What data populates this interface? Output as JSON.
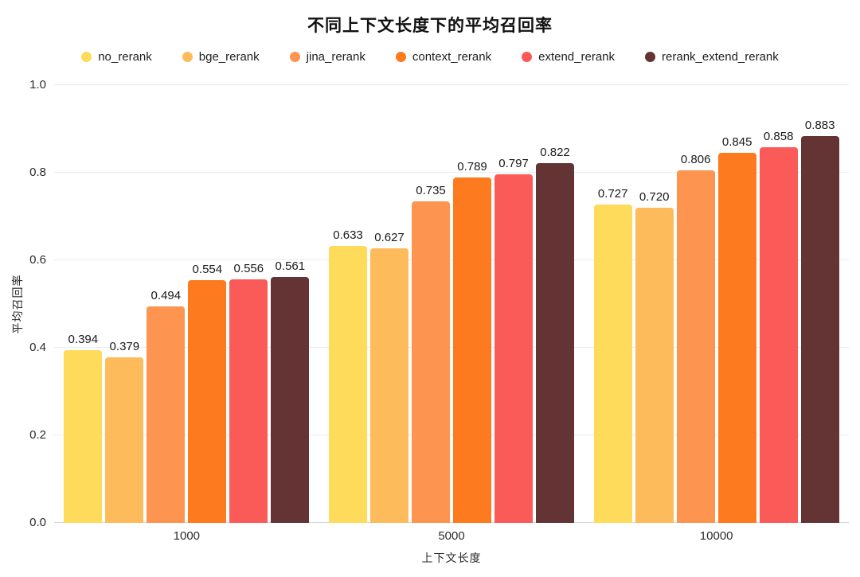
{
  "chart_data": {
    "type": "bar",
    "title": "不同上下文长度下的平均召回率",
    "xlabel": "上下文长度",
    "ylabel": "平均召回率",
    "categories": [
      "1000",
      "5000",
      "10000"
    ],
    "series": [
      {
        "name": "no_rerank",
        "color": "#FFDB5C",
        "values": [
          0.394,
          0.633,
          0.727
        ]
      },
      {
        "name": "bge_rerank",
        "color": "#FEBB5B",
        "values": [
          0.379,
          0.627,
          0.72
        ]
      },
      {
        "name": "jina_rerank",
        "color": "#FD9551",
        "values": [
          0.494,
          0.735,
          0.806
        ]
      },
      {
        "name": "context_rerank",
        "color": "#FD7B1E",
        "values": [
          0.554,
          0.789,
          0.845
        ]
      },
      {
        "name": "extend_rerank",
        "color": "#FB5B58",
        "values": [
          0.556,
          0.797,
          0.858
        ]
      },
      {
        "name": "rerank_extend_rerank",
        "color": "#633433",
        "values": [
          0.561,
          0.822,
          0.883
        ]
      }
    ],
    "ylim": [
      0.0,
      1.0
    ],
    "yticks": [
      0.0,
      0.2,
      0.4,
      0.6,
      0.8,
      1.0
    ],
    "ytick_labels": [
      "0.0",
      "0.2",
      "0.4",
      "0.6",
      "0.8",
      "1.0"
    ],
    "grid": true,
    "legend_position": "top",
    "value_labels": true,
    "value_label_decimals": 3
  },
  "colors": {
    "background": "#ffffff",
    "gridline": "#ececec",
    "axis_line": "#d6d6d6",
    "title_text": "#111111",
    "tick_text": "#2b2b2b"
  }
}
